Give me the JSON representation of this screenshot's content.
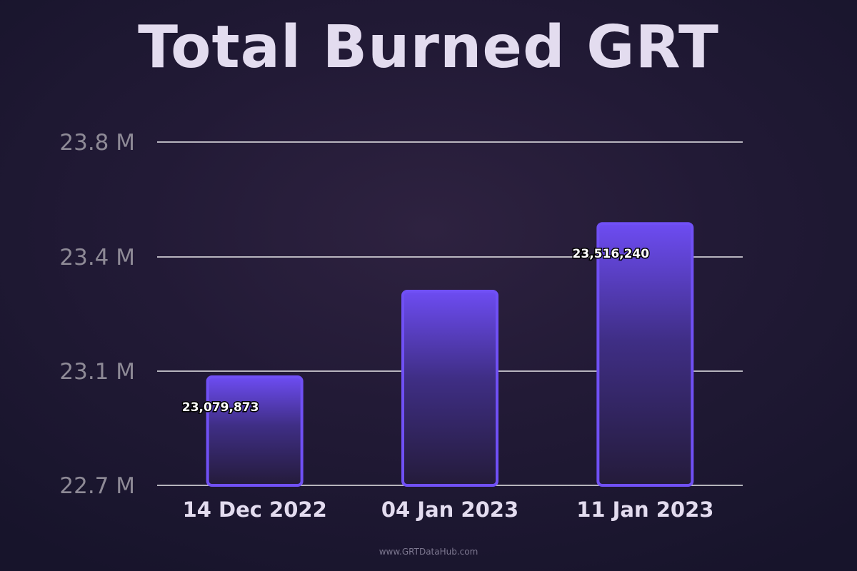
{
  "chart_data": {
    "type": "bar",
    "title": "Total Burned GRT",
    "categories": [
      "14 Dec 2022",
      "04 Jan 2023",
      "11 Jan 2023"
    ],
    "values": [
      23079873,
      23310000,
      23516240
    ],
    "data_labels": [
      "23,079,873",
      "",
      "23,516,240"
    ],
    "yticks": [
      22.7,
      23.1,
      23.4,
      23.8
    ],
    "ytick_labels": [
      "22.7 M",
      "23.1 M",
      "23.4 M",
      "23.8 M"
    ],
    "ylim": [
      22.7,
      23.8
    ],
    "y_scale": "millions",
    "grid": true,
    "legend": "none",
    "colors": {
      "bar_top": "#6d4cf2",
      "bar_bottom": "#241b3a",
      "bar_border": "#7050f5",
      "gridline": "#ffffff",
      "title": "#e3dcef"
    }
  },
  "footer": {
    "text": "www.GRTDataHub.com"
  }
}
